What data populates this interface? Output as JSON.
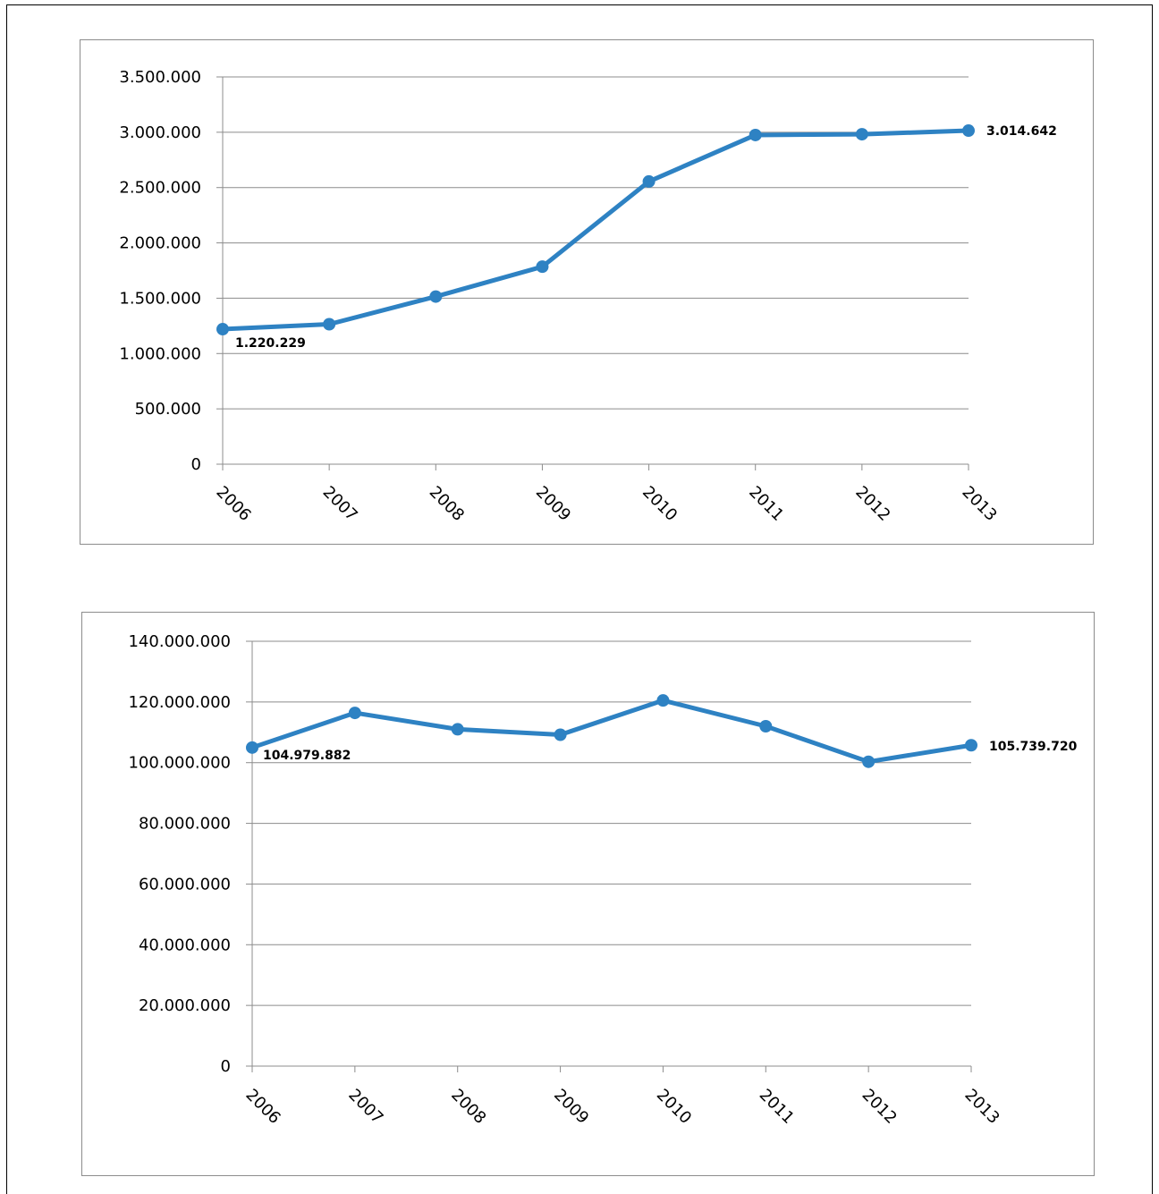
{
  "chart_data": [
    {
      "type": "line",
      "x": [
        "2006",
        "2007",
        "2008",
        "2009",
        "2010",
        "2011",
        "2012",
        "2013"
      ],
      "series": [
        {
          "values": [
            1220229,
            1265000,
            1515000,
            1785000,
            2555000,
            2975000,
            2982000,
            3014642
          ]
        }
      ],
      "ylim": [
        0,
        3500000
      ],
      "yticks": [
        0,
        500000,
        1000000,
        1500000,
        2000000,
        2500000,
        3000000,
        3500000
      ],
      "ytick_labels": [
        "0",
        "500.000",
        "1.000.000",
        "1.500.000",
        "2.000.000",
        "2.500.000",
        "3.000.000",
        "3.500.000"
      ],
      "data_labels": [
        {
          "index": 0,
          "text": "1.220.229"
        },
        {
          "index": 7,
          "text": "3.014.642"
        }
      ],
      "grid": true,
      "color": "#2e82c3"
    },
    {
      "type": "line",
      "x": [
        "2006",
        "2007",
        "2008",
        "2009",
        "2010",
        "2011",
        "2012",
        "2013"
      ],
      "series": [
        {
          "values": [
            104979882,
            116400000,
            111000000,
            109200000,
            120500000,
            112000000,
            100300000,
            105739720
          ]
        }
      ],
      "ylim": [
        0,
        140000000
      ],
      "yticks": [
        0,
        20000000,
        40000000,
        60000000,
        80000000,
        100000000,
        120000000,
        140000000
      ],
      "ytick_labels": [
        "0",
        "20.000.000",
        "40.000.000",
        "60.000.000",
        "80.000.000",
        "100.000.000",
        "120.000.000",
        "140.000.000"
      ],
      "data_labels": [
        {
          "index": 0,
          "text": "104.979.882"
        },
        {
          "index": 7,
          "text": "105.739.720"
        }
      ],
      "grid": true,
      "color": "#2e82c3"
    }
  ]
}
